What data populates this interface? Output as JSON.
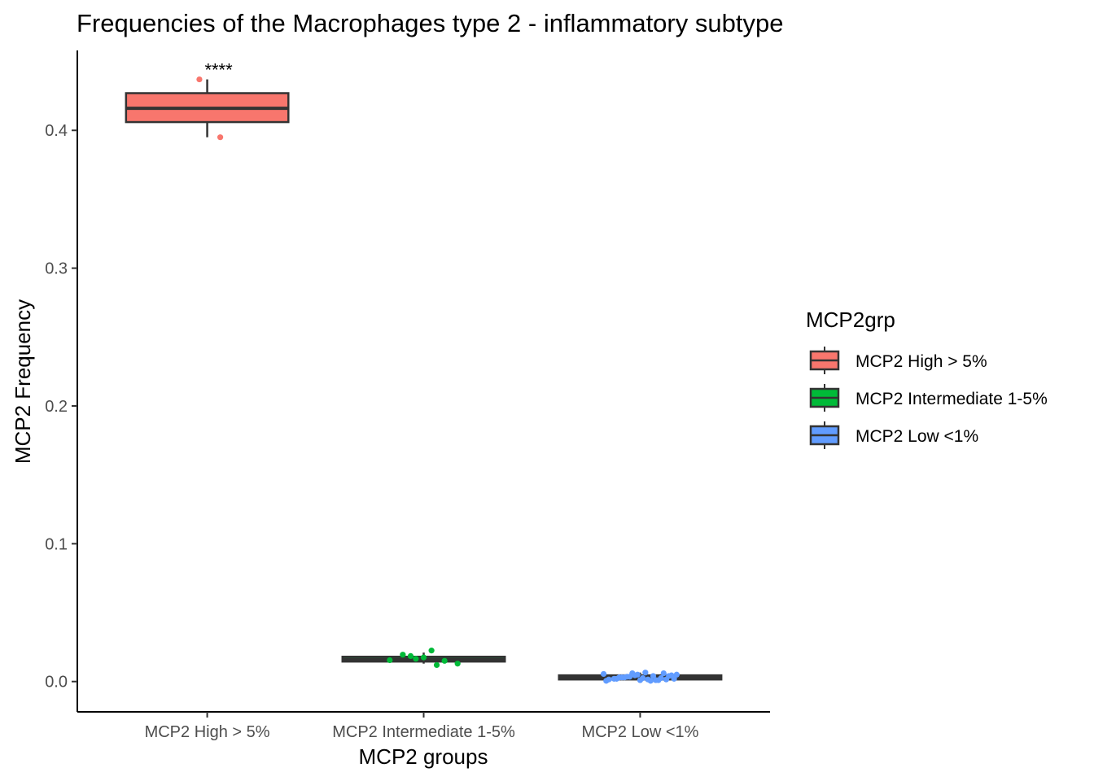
{
  "chart_data": {
    "type": "boxplot",
    "title": "Frequencies of the Macrophages type 2 - inflammatory subtype",
    "xlabel": "MCP2 groups",
    "ylabel": "MCP2 Frequency",
    "ylim": [
      -0.022,
      0.458
    ],
    "yticks": [
      0.0,
      0.1,
      0.2,
      0.3,
      0.4
    ],
    "ytick_labels": [
      "0.0",
      "0.1",
      "0.2",
      "0.3",
      "0.4"
    ],
    "grid": false,
    "legend_title": "MCP2grp",
    "legend_position": "right",
    "categories": [
      "MCP2 High > 5%",
      "MCP2 Intermediate 1-5%",
      "MCP2 Low <1%"
    ],
    "series": [
      {
        "name": "MCP2 High > 5%",
        "color": "#F8766D",
        "box": {
          "min": 0.395,
          "q1": 0.406,
          "median": 0.416,
          "q3": 0.427,
          "max": 0.437
        },
        "points": [
          0.437,
          0.395
        ],
        "annotation": "****"
      },
      {
        "name": "MCP2 Intermediate 1-5%",
        "color": "#00BA38",
        "box": {
          "min": 0.013,
          "q1": 0.0145,
          "median": 0.016,
          "q3": 0.018,
          "max": 0.021
        },
        "points": [
          0.0165,
          0.012,
          0.013,
          0.0195,
          0.0175,
          0.015,
          0.0155,
          0.0185,
          0.0225
        ]
      },
      {
        "name": "MCP2 Low <1%",
        "color": "#619CFF",
        "box": {
          "min": 0.0005,
          "q1": 0.0015,
          "median": 0.003,
          "q3": 0.0045,
          "max": 0.0065
        },
        "points": [
          0.006,
          0.004,
          0.002,
          0.003,
          0.001,
          0.0025,
          0.0005,
          0.0035,
          0.0015,
          0.004,
          0.002,
          0.0045,
          0.001,
          0.005,
          0.003,
          0.0025,
          0.006,
          0.0015,
          0.0035,
          0.0005,
          0.0045,
          0.002,
          0.005,
          0.001,
          0.0055,
          0.003,
          0.0065,
          0.0015
        ]
      }
    ]
  }
}
